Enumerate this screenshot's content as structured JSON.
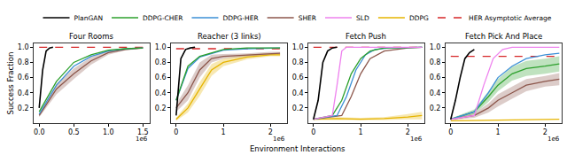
{
  "chart_data": {
    "type": "line",
    "xlabel": "Environment Interactions",
    "ylabel": "Success Fraction",
    "legend": "top",
    "grid": false,
    "series": [
      {
        "name": "PlanGAN",
        "color": "#000000",
        "line_style": "solid"
      },
      {
        "name": "DDPG-CHER",
        "color": "#2ca02c",
        "line_style": "solid"
      },
      {
        "name": "DDPG-HER",
        "color": "#3b8fd6",
        "line_style": "solid"
      },
      {
        "name": "SHER",
        "color": "#8c564b",
        "line_style": "solid"
      },
      {
        "name": "SLD",
        "color": "#ee82ee",
        "line_style": "solid"
      },
      {
        "name": "DDPG",
        "color": "#e6b400",
        "line_style": "solid"
      },
      {
        "name": "HER Asymptotic Average",
        "color": "#d62728",
        "line_style": "dashed"
      }
    ],
    "subplots": [
      {
        "title": "Four Rooms",
        "annotations": [
          "1e6"
        ],
        "xlim": [
          -0.08,
          1.6
        ],
        "xticks": [
          {
            "value": 0,
            "label": "0.0"
          },
          0.5,
          {
            "value": 1,
            "label": "1.0"
          },
          1.5
        ],
        "ylim": [
          0,
          1.05
        ],
        "yticks": [
          0.2,
          0.4,
          0.6,
          0.8,
          {
            "value": 1,
            "label": "1.0"
          }
        ],
        "series": [
          {
            "name": "HER Asymptotic Average",
            "x": [
              0,
              1.55
            ],
            "values": [
              1.0,
              1.0
            ]
          },
          {
            "name": "SHER",
            "x": [
              0,
              0.25,
              0.5,
              0.75,
              1,
              1.25,
              1.5
            ],
            "values": [
              0.1,
              0.45,
              0.65,
              0.82,
              0.93,
              0.97,
              0.99
            ],
            "lower": [
              0.08,
              0.38,
              0.58,
              0.77,
              0.9,
              0.96,
              0.98
            ],
            "upper": [
              0.12,
              0.52,
              0.72,
              0.87,
              0.96,
              0.98,
              1.0
            ]
          },
          {
            "name": "DDPG-HER",
            "x": [
              0,
              0.25,
              0.5,
              0.75,
              1,
              1.25,
              1.5
            ],
            "values": [
              0.12,
              0.5,
              0.75,
              0.88,
              0.95,
              0.98,
              0.99
            ]
          },
          {
            "name": "DDPG-CHER",
            "x": [
              0,
              0.25,
              0.5,
              0.75,
              1,
              1.25,
              1.5
            ],
            "values": [
              0.15,
              0.55,
              0.8,
              0.9,
              0.96,
              0.98,
              0.99
            ]
          },
          {
            "name": "PlanGAN",
            "x": [
              0,
              0.05,
              0.1,
              0.15,
              0.2
            ],
            "values": [
              0.2,
              0.7,
              0.95,
              0.99,
              1.0
            ]
          }
        ]
      },
      {
        "title": "Reacher (3 links)",
        "annotations": [
          "1e6"
        ],
        "xlim": [
          -0.11,
          2.35
        ],
        "xticks": [
          0,
          1,
          2
        ],
        "ylim": [
          0,
          1.05
        ],
        "yticks": [
          0.2,
          0.4,
          0.6,
          0.8,
          {
            "value": 1,
            "label": "1.0"
          }
        ],
        "series": [
          {
            "name": "HER Asymptotic Average",
            "x": [
              0,
              2.3
            ],
            "values": [
              0.98,
              0.98
            ]
          },
          {
            "name": "DDPG",
            "x": [
              0,
              0.25,
              0.5,
              0.75,
              1,
              1.5,
              2,
              2.2
            ],
            "values": [
              0.05,
              0.2,
              0.45,
              0.7,
              0.8,
              0.87,
              0.9,
              0.9
            ],
            "lower": [
              0.03,
              0.14,
              0.36,
              0.62,
              0.75,
              0.84,
              0.88,
              0.88
            ],
            "upper": [
              0.07,
              0.26,
              0.54,
              0.78,
              0.85,
              0.9,
              0.92,
              0.92
            ]
          },
          {
            "name": "SHER",
            "x": [
              0,
              0.25,
              0.5,
              0.75,
              1,
              1.5,
              2,
              2.2
            ],
            "values": [
              0.2,
              0.4,
              0.7,
              0.85,
              0.88,
              0.9,
              0.92,
              0.92
            ],
            "lower": [
              0.15,
              0.3,
              0.6,
              0.8,
              0.85,
              0.88,
              0.9,
              0.9
            ],
            "upper": [
              0.25,
              0.5,
              0.8,
              0.9,
              0.91,
              0.92,
              0.94,
              0.94
            ]
          },
          {
            "name": "DDPG-HER",
            "x": [
              0,
              0.25,
              0.5,
              1,
              1.5,
              2,
              2.2
            ],
            "values": [
              0.3,
              0.72,
              0.87,
              0.96,
              0.98,
              0.99,
              0.99
            ]
          },
          {
            "name": "DDPG-CHER",
            "x": [
              0,
              0.25,
              0.5,
              1,
              1.5,
              2,
              2.2
            ],
            "values": [
              0.3,
              0.75,
              0.88,
              0.97,
              0.99,
              0.99,
              0.99
            ]
          },
          {
            "name": "PlanGAN",
            "x": [
              0,
              0.05,
              0.1,
              0.2,
              0.3,
              0.4
            ],
            "values": [
              0.1,
              0.5,
              0.85,
              0.97,
              0.99,
              1.0
            ]
          }
        ]
      },
      {
        "title": "Fetch Push",
        "annotations": [
          "1e6"
        ],
        "xlim": [
          -0.11,
          2.35
        ],
        "xticks": [
          0,
          1,
          2
        ],
        "ylim": [
          0,
          1.05
        ],
        "yticks": [
          0.2,
          0.4,
          0.6,
          0.8,
          {
            "value": 1,
            "label": "1.0"
          }
        ],
        "series": [
          {
            "name": "HER Asymptotic Average",
            "x": [
              0,
              2.3
            ],
            "values": [
              1.0,
              1.0
            ]
          },
          {
            "name": "DDPG",
            "x": [
              0,
              0.5,
              1,
              1.5,
              2,
              2.3
            ],
            "values": [
              0.05,
              0.06,
              0.05,
              0.06,
              0.08,
              0.1
            ],
            "lower": [
              0.04,
              0.04,
              0.04,
              0.04,
              0.05,
              0.05
            ],
            "upper": [
              0.06,
              0.08,
              0.07,
              0.08,
              0.12,
              0.15
            ]
          },
          {
            "name": "SHER",
            "x": [
              0,
              0.6,
              0.8,
              1,
              1.2,
              1.5,
              2,
              2.3
            ],
            "values": [
              0.05,
              0.1,
              0.35,
              0.65,
              0.85,
              0.95,
              0.99,
              1.0
            ]
          },
          {
            "name": "DDPG-HER",
            "x": [
              0,
              0.5,
              0.7,
              0.9,
              1.1,
              1.3,
              1.6,
              2.3
            ],
            "values": [
              0.05,
              0.1,
              0.35,
              0.7,
              0.9,
              0.97,
              0.99,
              1.0
            ]
          },
          {
            "name": "DDPG-CHER",
            "x": [
              0,
              0.4,
              0.6,
              0.8,
              1,
              1.2,
              1.5,
              2.3
            ],
            "values": [
              0.05,
              0.1,
              0.3,
              0.65,
              0.85,
              0.95,
              0.99,
              1.0
            ]
          },
          {
            "name": "SLD",
            "x": [
              0,
              0.4,
              0.5,
              0.6,
              0.7,
              2.3
            ],
            "values": [
              0.05,
              0.1,
              0.5,
              0.95,
              1.0,
              1.0
            ]
          },
          {
            "name": "PlanGAN",
            "x": [
              0,
              0.1,
              0.2,
              0.3,
              0.4,
              0.5
            ],
            "values": [
              0.05,
              0.3,
              0.8,
              0.95,
              0.99,
              1.0
            ]
          }
        ]
      },
      {
        "title": "Fetch Pick And Place",
        "annotations": [
          "1e6"
        ],
        "xlim": [
          -0.11,
          2.35
        ],
        "xticks": [
          0,
          1,
          2
        ],
        "ylim": [
          0,
          1.05
        ],
        "yticks": [
          0.2,
          0.4,
          0.6,
          0.8,
          {
            "value": 1,
            "label": "1.0"
          }
        ],
        "series": [
          {
            "name": "HER Asymptotic Average",
            "x": [
              0,
              2.3
            ],
            "values": [
              0.88,
              0.88
            ]
          },
          {
            "name": "DDPG",
            "x": [
              0,
              1,
              2.3
            ],
            "values": [
              0.03,
              0.04,
              0.05
            ]
          },
          {
            "name": "SHER",
            "x": [
              0,
              0.5,
              0.8,
              1,
              1.3,
              1.6,
              2,
              2.3
            ],
            "values": [
              0.05,
              0.1,
              0.2,
              0.3,
              0.4,
              0.5,
              0.55,
              0.58
            ],
            "lower": [
              0.04,
              0.07,
              0.14,
              0.22,
              0.32,
              0.42,
              0.48,
              0.5
            ],
            "upper": [
              0.06,
              0.13,
              0.26,
              0.38,
              0.48,
              0.58,
              0.62,
              0.66
            ]
          },
          {
            "name": "DDPG-CHER",
            "x": [
              0,
              0.5,
              0.8,
              1,
              1.3,
              1.6,
              2,
              2.3
            ],
            "values": [
              0.05,
              0.15,
              0.35,
              0.5,
              0.65,
              0.72,
              0.75,
              0.78
            ],
            "lower": [
              0.04,
              0.12,
              0.28,
              0.42,
              0.56,
              0.62,
              0.65,
              0.68
            ],
            "upper": [
              0.06,
              0.18,
              0.42,
              0.58,
              0.74,
              0.82,
              0.85,
              0.88
            ]
          },
          {
            "name": "DDPG-HER",
            "x": [
              0,
              0.5,
              0.8,
              1,
              1.3,
              1.6,
              2,
              2.3
            ],
            "values": [
              0.05,
              0.15,
              0.4,
              0.6,
              0.75,
              0.85,
              0.9,
              0.92
            ]
          },
          {
            "name": "SLD",
            "x": [
              0,
              0.5,
              0.7,
              0.9,
              1.1,
              1.3,
              2.3
            ],
            "values": [
              0.05,
              0.1,
              0.5,
              0.85,
              0.97,
              1.0,
              1.0
            ]
          },
          {
            "name": "PlanGAN",
            "x": [
              0,
              0.1,
              0.2,
              0.3,
              0.4,
              0.5
            ],
            "values": [
              0.05,
              0.3,
              0.6,
              0.85,
              0.93,
              0.97
            ]
          }
        ]
      }
    ]
  }
}
